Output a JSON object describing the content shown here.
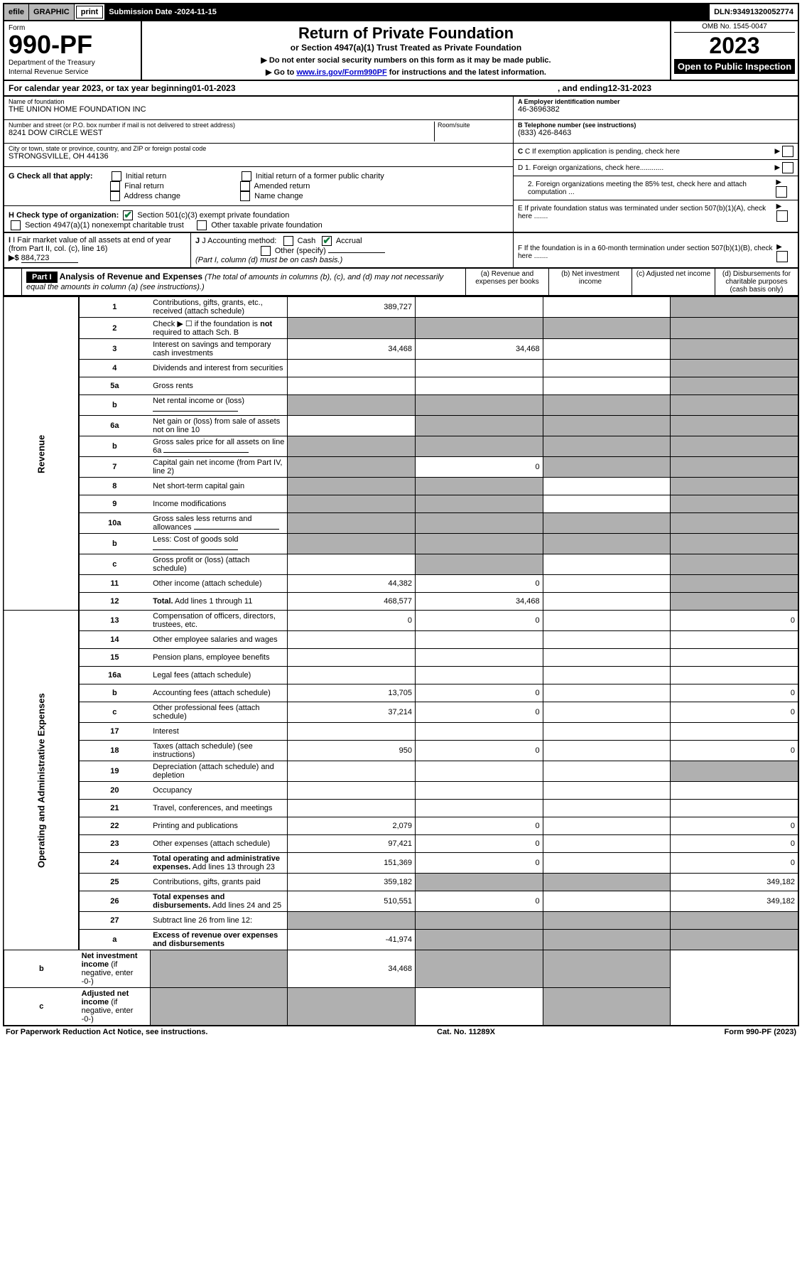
{
  "topbar": {
    "efile": "efile",
    "graphic": "GRAPHIC",
    "print": "print",
    "subdate_label": "Submission Date - ",
    "subdate": "2024-11-15",
    "dln_label": "DLN: ",
    "dln": "93491320052774"
  },
  "header": {
    "form": "Form",
    "formnum": "990-PF",
    "dept": "Department of the Treasury",
    "irs": "Internal Revenue Service",
    "title": "Return of Private Foundation",
    "subtitle": "or Section 4947(a)(1) Trust Treated as Private Foundation",
    "instr1": "▶ Do not enter social security numbers on this form as it may be made public.",
    "instr2_pre": "▶ Go to ",
    "instr2_link": "www.irs.gov/Form990PF",
    "instr2_post": " for instructions and the latest information.",
    "omb": "OMB No. 1545-0047",
    "year": "2023",
    "open": "Open to Public Inspection"
  },
  "calyear": {
    "pre": "For calendar year 2023, or tax year beginning ",
    "begin": "01-01-2023",
    "mid": ", and ending ",
    "end": "12-31-2023"
  },
  "info": {
    "name_lbl": "Name of foundation",
    "name": "THE UNION HOME FOUNDATION INC",
    "addr_lbl": "Number and street (or P.O. box number if mail is not delivered to street address)",
    "addr": "8241 DOW CIRCLE WEST",
    "room_lbl": "Room/suite",
    "city_lbl": "City or town, state or province, country, and ZIP or foreign postal code",
    "city": "STRONGSVILLE, OH  44136",
    "a_lbl": "A Employer identification number",
    "a_val": "46-3696382",
    "b_lbl": "B Telephone number (see instructions)",
    "b_val": "(833) 426-8463",
    "c_lbl": "C If exemption application is pending, check here"
  },
  "g": {
    "label": "G Check all that apply:",
    "opts": [
      "Initial return",
      "Initial return of a former public charity",
      "Final return",
      "Amended return",
      "Address change",
      "Name change"
    ]
  },
  "d": {
    "d1": "D 1. Foreign organizations, check here............",
    "d2": "2. Foreign organizations meeting the 85% test, check here and attach computation ...",
    "e": "E  If private foundation status was terminated under section 507(b)(1)(A), check here .......",
    "f": "F  If the foundation is in a 60-month termination under section 507(b)(1)(B), check here ......."
  },
  "h": {
    "label": "H Check type of organization:",
    "o1": "Section 501(c)(3) exempt private foundation",
    "o2": "Section 4947(a)(1) nonexempt charitable trust",
    "o3": "Other taxable private foundation"
  },
  "i": {
    "label": "I Fair market value of all assets at end of year (from Part II, col. (c), line 16)",
    "arrow": "▶$",
    "val": "884,723"
  },
  "j": {
    "label": "J Accounting method:",
    "cash": "Cash",
    "accrual": "Accrual",
    "other": "Other (specify)",
    "note": "(Part I, column (d) must be on cash basis.)"
  },
  "part1": {
    "label": "Part I",
    "title": "Analysis of Revenue and Expenses",
    "note": " (The total of amounts in columns (b), (c), and (d) may not necessarily equal the amounts in column (a) (see instructions).)",
    "cols": {
      "a": "(a) Revenue and expenses per books",
      "b": "(b) Net investment income",
      "c": "(c) Adjusted net income",
      "d": "(d) Disbursements for charitable purposes (cash basis only)"
    }
  },
  "sidebars": {
    "rev": "Revenue",
    "exp": "Operating and Administrative Expenses"
  },
  "rows": [
    {
      "n": "1",
      "desc": "Contributions, gifts, grants, etc., received (attach schedule)",
      "a": "389,727",
      "b": "",
      "c": "",
      "d": "",
      "shade": [
        "d"
      ]
    },
    {
      "n": "2",
      "desc": "Check ▶ ☐ if the foundation is <b>not</b> required to attach Sch. B",
      "a": "",
      "b": "",
      "c": "",
      "d": "",
      "shade": [
        "a",
        "b",
        "c",
        "d"
      ]
    },
    {
      "n": "3",
      "desc": "Interest on savings and temporary cash investments",
      "a": "34,468",
      "b": "34,468",
      "c": "",
      "d": "",
      "shade": [
        "d"
      ]
    },
    {
      "n": "4",
      "desc": "Dividends and interest from securities",
      "a": "",
      "b": "",
      "c": "",
      "d": "",
      "shade": [
        "d"
      ]
    },
    {
      "n": "5a",
      "desc": "Gross rents",
      "a": "",
      "b": "",
      "c": "",
      "d": "",
      "shade": [
        "d"
      ]
    },
    {
      "n": "b",
      "desc": "Net rental income or (loss)",
      "a": "",
      "b": "",
      "c": "",
      "d": "",
      "shade": [
        "a",
        "b",
        "c",
        "d"
      ],
      "inline": true
    },
    {
      "n": "6a",
      "desc": "Net gain or (loss) from sale of assets not on line 10",
      "a": "",
      "b": "",
      "c": "",
      "d": "",
      "shade": [
        "b",
        "c",
        "d"
      ]
    },
    {
      "n": "b",
      "desc": "Gross sales price for all assets on line 6a",
      "a": "",
      "b": "",
      "c": "",
      "d": "",
      "shade": [
        "a",
        "b",
        "c",
        "d"
      ],
      "inline": true
    },
    {
      "n": "7",
      "desc": "Capital gain net income (from Part IV, line 2)",
      "a": "",
      "b": "0",
      "c": "",
      "d": "",
      "shade": [
        "a",
        "c",
        "d"
      ]
    },
    {
      "n": "8",
      "desc": "Net short-term capital gain",
      "a": "",
      "b": "",
      "c": "",
      "d": "",
      "shade": [
        "a",
        "b",
        "d"
      ]
    },
    {
      "n": "9",
      "desc": "Income modifications",
      "a": "",
      "b": "",
      "c": "",
      "d": "",
      "shade": [
        "a",
        "b",
        "d"
      ]
    },
    {
      "n": "10a",
      "desc": "Gross sales less returns and allowances",
      "a": "",
      "b": "",
      "c": "",
      "d": "",
      "shade": [
        "a",
        "b",
        "c",
        "d"
      ],
      "inline": true
    },
    {
      "n": "b",
      "desc": "Less: Cost of goods sold",
      "a": "",
      "b": "",
      "c": "",
      "d": "",
      "shade": [
        "a",
        "b",
        "c",
        "d"
      ],
      "inline": true
    },
    {
      "n": "c",
      "desc": "Gross profit or (loss) (attach schedule)",
      "a": "",
      "b": "",
      "c": "",
      "d": "",
      "shade": [
        "b",
        "d"
      ]
    },
    {
      "n": "11",
      "desc": "Other income (attach schedule)",
      "a": "44,382",
      "b": "0",
      "c": "",
      "d": "",
      "shade": [
        "d"
      ]
    },
    {
      "n": "12",
      "desc": "<b>Total.</b> Add lines 1 through 11",
      "a": "468,577",
      "b": "34,468",
      "c": "",
      "d": "",
      "shade": [
        "d"
      ],
      "bold": true
    },
    {
      "n": "13",
      "desc": "Compensation of officers, directors, trustees, etc.",
      "a": "0",
      "b": "0",
      "c": "",
      "d": "0"
    },
    {
      "n": "14",
      "desc": "Other employee salaries and wages",
      "a": "",
      "b": "",
      "c": "",
      "d": ""
    },
    {
      "n": "15",
      "desc": "Pension plans, employee benefits",
      "a": "",
      "b": "",
      "c": "",
      "d": ""
    },
    {
      "n": "16a",
      "desc": "Legal fees (attach schedule)",
      "a": "",
      "b": "",
      "c": "",
      "d": ""
    },
    {
      "n": "b",
      "desc": "Accounting fees (attach schedule)",
      "a": "13,705",
      "b": "0",
      "c": "",
      "d": "0"
    },
    {
      "n": "c",
      "desc": "Other professional fees (attach schedule)",
      "a": "37,214",
      "b": "0",
      "c": "",
      "d": "0"
    },
    {
      "n": "17",
      "desc": "Interest",
      "a": "",
      "b": "",
      "c": "",
      "d": ""
    },
    {
      "n": "18",
      "desc": "Taxes (attach schedule) (see instructions)",
      "a": "950",
      "b": "0",
      "c": "",
      "d": "0"
    },
    {
      "n": "19",
      "desc": "Depreciation (attach schedule) and depletion",
      "a": "",
      "b": "",
      "c": "",
      "d": "",
      "shade": [
        "d"
      ]
    },
    {
      "n": "20",
      "desc": "Occupancy",
      "a": "",
      "b": "",
      "c": "",
      "d": ""
    },
    {
      "n": "21",
      "desc": "Travel, conferences, and meetings",
      "a": "",
      "b": "",
      "c": "",
      "d": ""
    },
    {
      "n": "22",
      "desc": "Printing and publications",
      "a": "2,079",
      "b": "0",
      "c": "",
      "d": "0"
    },
    {
      "n": "23",
      "desc": "Other expenses (attach schedule)",
      "a": "97,421",
      "b": "0",
      "c": "",
      "d": "0"
    },
    {
      "n": "24",
      "desc": "<b>Total operating and administrative expenses.</b> Add lines 13 through 23",
      "a": "151,369",
      "b": "0",
      "c": "",
      "d": "0",
      "bold": true
    },
    {
      "n": "25",
      "desc": "Contributions, gifts, grants paid",
      "a": "359,182",
      "b": "",
      "c": "",
      "d": "349,182",
      "shade": [
        "b",
        "c"
      ]
    },
    {
      "n": "26",
      "desc": "<b>Total expenses and disbursements.</b> Add lines 24 and 25",
      "a": "510,551",
      "b": "0",
      "c": "",
      "d": "349,182",
      "bold": true
    },
    {
      "n": "27",
      "desc": "Subtract line 26 from line 12:",
      "a": "",
      "b": "",
      "c": "",
      "d": "",
      "shade": [
        "a",
        "b",
        "c",
        "d"
      ]
    },
    {
      "n": "a",
      "desc": "<b>Excess of revenue over expenses and disbursements</b>",
      "a": "-41,974",
      "b": "",
      "c": "",
      "d": "",
      "shade": [
        "b",
        "c",
        "d"
      ]
    },
    {
      "n": "b",
      "desc": "<b>Net investment income</b> (if negative, enter -0-)",
      "a": "",
      "b": "34,468",
      "c": "",
      "d": "",
      "shade": [
        "a",
        "c",
        "d"
      ]
    },
    {
      "n": "c",
      "desc": "<b>Adjusted net income</b> (if negative, enter -0-)",
      "a": "",
      "b": "",
      "c": "",
      "d": "",
      "shade": [
        "a",
        "b",
        "d"
      ]
    }
  ],
  "footer": {
    "left": "For Paperwork Reduction Act Notice, see instructions.",
    "mid": "Cat. No. 11289X",
    "right": "Form 990-PF (2023)"
  }
}
